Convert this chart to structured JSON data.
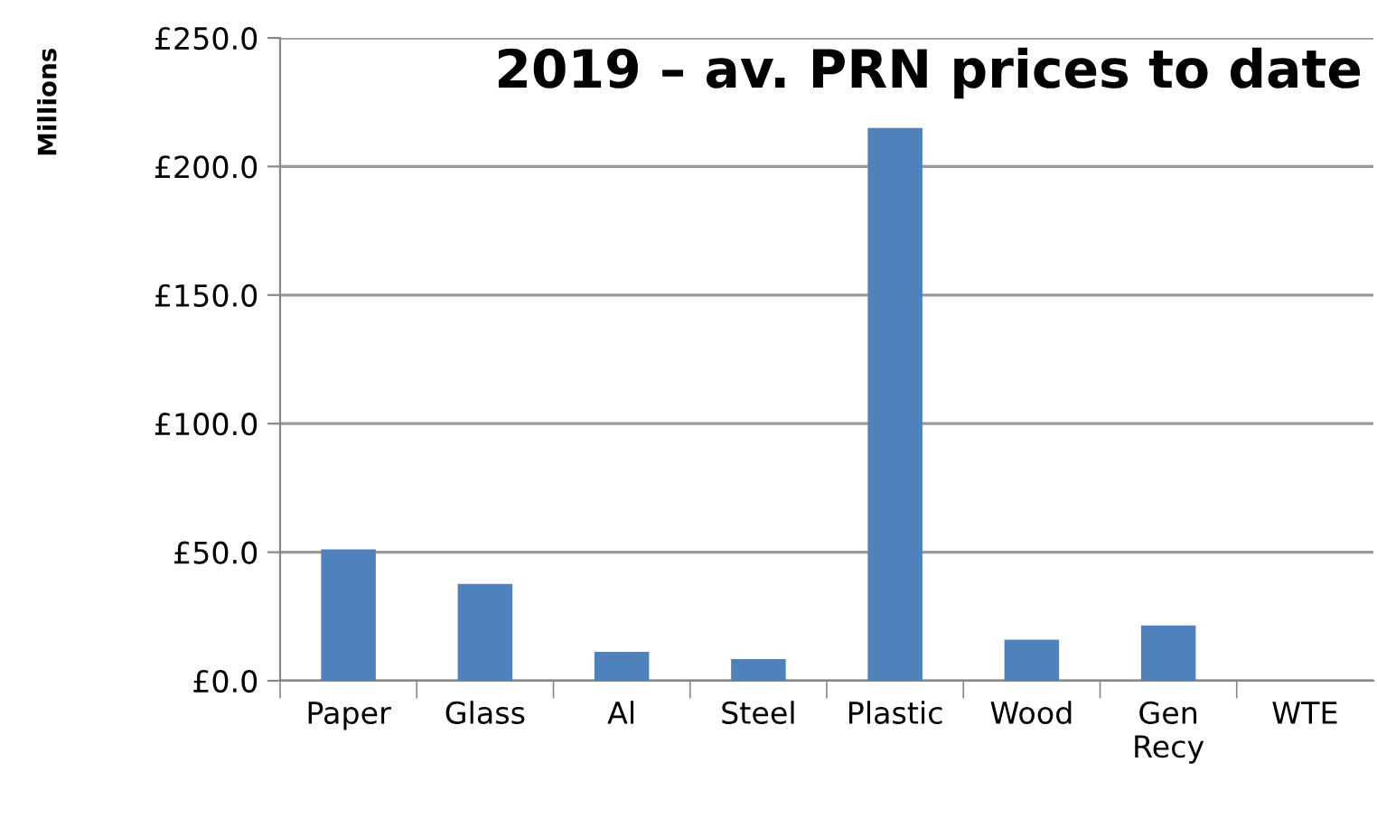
{
  "chart_data": {
    "type": "bar",
    "title": "2019 – av. PRN prices to date",
    "ylabel": "Millions",
    "categories": [
      "Paper",
      "Glass",
      "Al",
      "Steel",
      "Plastic",
      "Wood",
      "Gen\nRecy",
      "WTE"
    ],
    "values": [
      51.1,
      37.7,
      11.2,
      8.4,
      215,
      16,
      21.5,
      null
    ],
    "color": "#4f81bd",
    "ylim": [
      0,
      250
    ],
    "yticks": [
      {
        "value": 0,
        "label": "£0.0"
      },
      {
        "value": 50,
        "label": "£50.0"
      },
      {
        "value": 100,
        "label": "£100.0"
      },
      {
        "value": 150,
        "label": "£150.0"
      },
      {
        "value": 200,
        "label": "£200.0"
      },
      {
        "value": 250,
        "label": "£250.0"
      }
    ],
    "grid": "y"
  }
}
